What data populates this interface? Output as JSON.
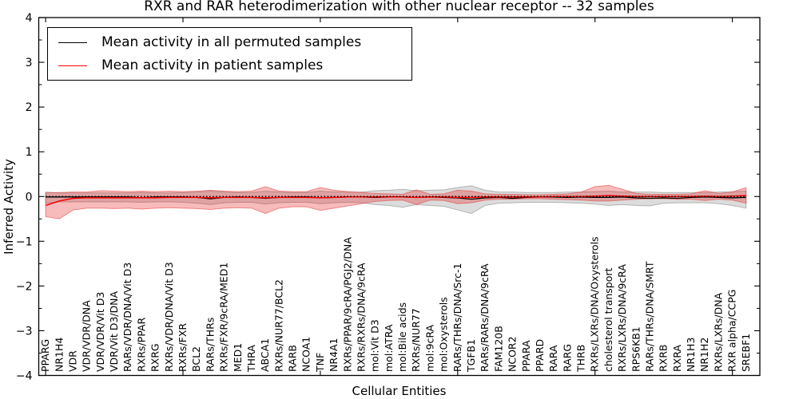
{
  "chart_data": {
    "type": "line",
    "title": "RXR and RAR heterodimerization with other nuclear receptor -- 32 samples",
    "xlabel": "Cellular Entities",
    "ylabel": "Inferred Activity",
    "ylim": [
      -4,
      4
    ],
    "ytick_labels": [
      "4",
      "3",
      "2",
      "1",
      "0",
      "−1",
      "−2",
      "−3",
      "−4"
    ],
    "x_major_tick_indices": [
      0,
      10,
      20,
      30,
      40,
      50
    ],
    "grid": false,
    "legend_position": "upper left",
    "zero_line": {
      "style": "dotted",
      "color": "#000000",
      "y": 0
    },
    "categories": [
      "PPARG",
      "NR1H4",
      "VDR",
      "VDR/VDR/DNA",
      "VDR/VDR/Vit D3",
      "VDR/Vit D3/DNA",
      "RARs/VDR/DNA/Vit D3",
      "RXRs/PPAR",
      "RXRG",
      "RXRs/VDR/DNA/Vit D3",
      "RXRs/FXR",
      "BCL2",
      "RARs/THRs",
      "RXRs/FXR/9cRA/MED1",
      "MED1",
      "THRA",
      "ABCA1",
      "RXRs/NUR77/BCL2",
      "RARB",
      "NCOA1",
      "TNF",
      "NR4A1",
      "RXRs/PPAR/9cRA/PGJ2/DNA",
      "RXRs/RXRs/DNA/9cRA",
      "mol:Vit D3",
      "mol:ATRA",
      "mol:Bile acids",
      "RXRs/NUR77",
      "mol:9cRA",
      "mol:Oxysterols",
      "RARs/THRs/DNA/Src-1",
      "TGFB1",
      "RARs/RARs/DNA/9cRA",
      "FAM120B",
      "NCOR2",
      "PPARA",
      "PPARD",
      "RARA",
      "RARG",
      "THRB",
      "RXRs/LXRs/DNA/Oxysterols",
      "cholesterol transport",
      "RXRs/LXRs/DNA/9cRA",
      "RPS6KB1",
      "RARs/THRs/DNA/SMRT",
      "RXRB",
      "RXRA",
      "NR1H3",
      "NR1H2",
      "RXRs/LXRs/DNA",
      "RXR alpha/CCPG",
      "SREBF1"
    ],
    "series": [
      {
        "name": "Mean activity in all permuted samples",
        "color": "#000000",
        "line_width": 1.3,
        "band_color": "rgba(128,128,128,0.28)",
        "band_edge": "rgba(110,110,110,0.45)",
        "values": [
          -0.01,
          -0.01,
          -0.01,
          -0.01,
          -0.01,
          -0.01,
          -0.01,
          -0.03,
          -0.01,
          -0.01,
          -0.01,
          -0.02,
          -0.05,
          -0.02,
          -0.01,
          -0.02,
          -0.04,
          -0.02,
          -0.01,
          -0.01,
          -0.03,
          -0.02,
          -0.01,
          -0.01,
          -0.02,
          -0.01,
          -0.01,
          -0.02,
          -0.01,
          -0.02,
          -0.03,
          -0.06,
          -0.03,
          -0.02,
          -0.04,
          -0.02,
          -0.01,
          -0.01,
          -0.02,
          -0.01,
          -0.02,
          -0.02,
          -0.01,
          -0.03,
          -0.04,
          -0.03,
          -0.04,
          -0.02,
          -0.01,
          -0.02,
          -0.03,
          -0.02
        ],
        "band_upper": [
          0.1,
          0.08,
          0.08,
          0.08,
          0.08,
          0.08,
          0.08,
          0.09,
          0.08,
          0.08,
          0.09,
          0.1,
          0.12,
          0.1,
          0.09,
          0.09,
          0.12,
          0.1,
          0.09,
          0.09,
          0.12,
          0.1,
          0.1,
          0.1,
          0.13,
          0.14,
          0.16,
          0.13,
          0.14,
          0.15,
          0.2,
          0.24,
          0.14,
          0.1,
          0.1,
          0.09,
          0.09,
          0.09,
          0.1,
          0.1,
          0.11,
          0.12,
          0.1,
          0.1,
          0.1,
          0.09,
          0.09,
          0.09,
          0.09,
          0.1,
          0.11,
          0.12
        ],
        "band_lower": [
          -0.15,
          -0.12,
          -0.12,
          -0.12,
          -0.12,
          -0.12,
          -0.12,
          -0.13,
          -0.12,
          -0.12,
          -0.13,
          -0.15,
          -0.18,
          -0.14,
          -0.13,
          -0.13,
          -0.17,
          -0.14,
          -0.13,
          -0.13,
          -0.16,
          -0.14,
          -0.13,
          -0.14,
          -0.18,
          -0.2,
          -0.24,
          -0.18,
          -0.2,
          -0.22,
          -0.3,
          -0.38,
          -0.2,
          -0.15,
          -0.14,
          -0.13,
          -0.13,
          -0.13,
          -0.14,
          -0.15,
          -0.17,
          -0.2,
          -0.18,
          -0.2,
          -0.21,
          -0.15,
          -0.14,
          -0.14,
          -0.14,
          -0.16,
          -0.2,
          -0.26
        ]
      },
      {
        "name": "Mean activity in patient samples",
        "color": "#ff0000",
        "line_width": 1.5,
        "band_color": "rgba(230,30,30,0.30)",
        "band_edge": "rgba(225,60,60,0.55)",
        "values": [
          -0.2,
          -0.1,
          -0.04,
          -0.03,
          -0.03,
          -0.03,
          -0.03,
          -0.03,
          -0.03,
          -0.02,
          -0.02,
          -0.02,
          -0.03,
          -0.02,
          -0.02,
          -0.02,
          -0.03,
          -0.02,
          -0.02,
          -0.02,
          -0.03,
          -0.02,
          -0.01,
          -0.01,
          -0.01,
          -0.01,
          -0.01,
          -0.02,
          -0.01,
          -0.01,
          -0.02,
          -0.02,
          -0.01,
          -0.01,
          -0.01,
          -0.01,
          -0.01,
          0.0,
          0.0,
          0.0,
          0.01,
          0.02,
          0.01,
          0.0,
          0.0,
          0.0,
          0.0,
          0.0,
          0.01,
          0.0,
          0.01,
          0.02
        ],
        "band_upper": [
          0.08,
          0.09,
          0.1,
          0.1,
          0.13,
          0.12,
          0.11,
          0.12,
          0.11,
          0.12,
          0.11,
          0.12,
          0.14,
          0.12,
          0.11,
          0.12,
          0.22,
          0.12,
          0.11,
          0.11,
          0.2,
          0.14,
          0.11,
          0.09,
          0.07,
          0.06,
          0.05,
          0.15,
          0.05,
          0.06,
          0.14,
          0.12,
          0.06,
          0.05,
          0.05,
          0.04,
          0.04,
          0.05,
          0.06,
          0.1,
          0.22,
          0.25,
          0.16,
          0.07,
          0.05,
          0.05,
          0.05,
          0.06,
          0.13,
          0.07,
          0.1,
          0.2
        ],
        "band_lower": [
          -0.45,
          -0.5,
          -0.3,
          -0.26,
          -0.26,
          -0.27,
          -0.26,
          -0.28,
          -0.26,
          -0.25,
          -0.26,
          -0.27,
          -0.29,
          -0.26,
          -0.25,
          -0.26,
          -0.38,
          -0.26,
          -0.23,
          -0.23,
          -0.31,
          -0.26,
          -0.21,
          -0.16,
          -0.11,
          -0.09,
          -0.08,
          -0.18,
          -0.08,
          -0.09,
          -0.16,
          -0.14,
          -0.08,
          -0.06,
          -0.06,
          -0.05,
          -0.05,
          -0.06,
          -0.07,
          -0.08,
          -0.1,
          -0.1,
          -0.08,
          -0.06,
          -0.05,
          -0.05,
          -0.06,
          -0.06,
          -0.09,
          -0.06,
          -0.08,
          -0.15
        ]
      }
    ]
  }
}
